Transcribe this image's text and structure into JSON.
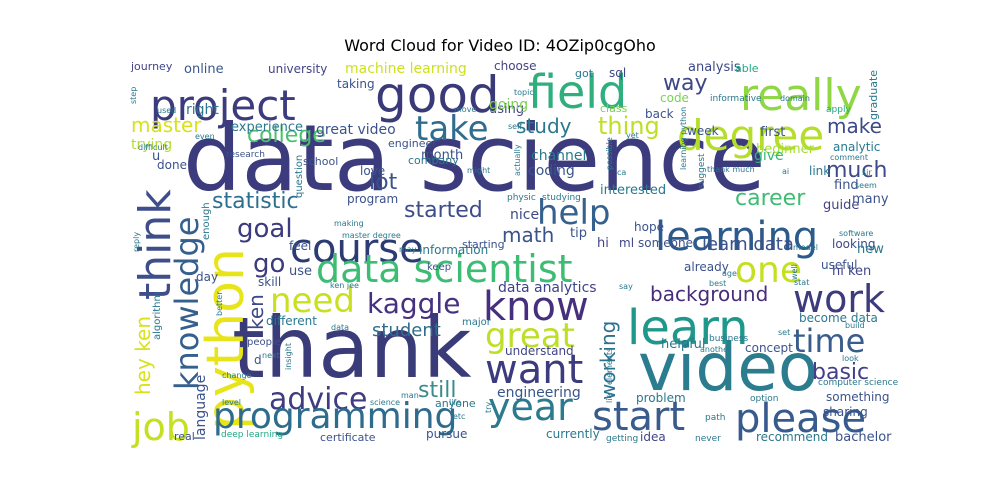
{
  "title": "Word Cloud for Video ID: 4OZip0cgOho",
  "palette": {
    "dark_purple": "#440154",
    "indigo": "#414487",
    "blue": "#2a788e",
    "teal": "#22a884",
    "green": "#7ad151",
    "yellow": "#fde725"
  },
  "words": [
    {
      "text": "data science",
      "color": "#3b3b7d"
    },
    {
      "text": "thank",
      "color": "#3a3b79"
    },
    {
      "text": "video",
      "color": "#2a7c8e"
    },
    {
      "text": "project",
      "color": "#3b3b7e"
    },
    {
      "text": "good",
      "color": "#3a3a79"
    },
    {
      "text": "field",
      "color": "#2fae7e"
    },
    {
      "text": "really",
      "color": "#8fd744"
    },
    {
      "text": "degree",
      "color": "#b5de2b"
    },
    {
      "text": "take",
      "color": "#2f6c8e"
    },
    {
      "text": "python",
      "color": "#e7e419"
    },
    {
      "text": "think",
      "color": "#3d4e8a"
    },
    {
      "text": "knowledge",
      "color": "#355f8d"
    },
    {
      "text": "course",
      "color": "#2c3c73"
    },
    {
      "text": "help",
      "color": "#34618d"
    },
    {
      "text": "learning",
      "color": "#2c5b8b"
    },
    {
      "text": "data scientist",
      "color": "#3dbc74"
    },
    {
      "text": "one",
      "color": "#c5e021"
    },
    {
      "text": "need",
      "color": "#c9e020"
    },
    {
      "text": "kaggle",
      "color": "#46317e"
    },
    {
      "text": "know",
      "color": "#46307e"
    },
    {
      "text": "learn",
      "color": "#1f988b"
    },
    {
      "text": "want",
      "color": "#3b3b7d"
    },
    {
      "text": "work",
      "color": "#3b3b7d"
    },
    {
      "text": "time",
      "color": "#3a5c8c"
    },
    {
      "text": "great",
      "color": "#bddf26"
    },
    {
      "text": "year",
      "color": "#2b7a8e"
    },
    {
      "text": "advice",
      "color": "#3f3c81"
    },
    {
      "text": "programming",
      "color": "#2e6c8e"
    },
    {
      "text": "start",
      "color": "#3a5c8c"
    },
    {
      "text": "please",
      "color": "#375b8d"
    },
    {
      "text": "job",
      "color": "#c5e021"
    },
    {
      "text": "go",
      "color": "#3b3b7d"
    },
    {
      "text": "goal",
      "color": "#3b3b7d"
    },
    {
      "text": "statistic",
      "color": "#2d6f8e"
    },
    {
      "text": "started",
      "color": "#3d4d8a"
    },
    {
      "text": "career",
      "color": "#3fbc73"
    },
    {
      "text": "master",
      "color": "#d8e219"
    },
    {
      "text": "college",
      "color": "#4ac16d"
    },
    {
      "text": "way",
      "color": "#3f4788"
    },
    {
      "text": "thing",
      "color": "#bddf26"
    },
    {
      "text": "study",
      "color": "#2a788e"
    },
    {
      "text": "much",
      "color": "#3e4989"
    },
    {
      "text": "make",
      "color": "#3e4989"
    },
    {
      "text": "lot",
      "color": "#3a538b"
    },
    {
      "text": "math",
      "color": "#3a538b"
    },
    {
      "text": "background",
      "color": "#472c7a"
    },
    {
      "text": "basic",
      "color": "#433e85"
    },
    {
      "text": "working",
      "color": "#2c718e"
    },
    {
      "text": "still",
      "color": "#3b8b8c"
    },
    {
      "text": "student",
      "color": "#2f6c8e"
    },
    {
      "text": "hey ken",
      "color": "#d8e219"
    },
    {
      "text": "language",
      "color": "#3b528b"
    },
    {
      "text": "ken",
      "color": "#3e4989"
    },
    {
      "text": "data analytics",
      "color": "#414487"
    },
    {
      "text": "engineering",
      "color": "#39568c"
    },
    {
      "text": "learn data",
      "color": "#3b528b"
    },
    {
      "text": "machine learning",
      "color": "#cde11d"
    },
    {
      "text": "experience",
      "color": "#2a788e"
    },
    {
      "text": "great video",
      "color": "#3b528b"
    },
    {
      "text": "coding",
      "color": "#39568c"
    },
    {
      "text": "channel",
      "color": "#2a788e"
    },
    {
      "text": "month",
      "color": "#3b528b"
    },
    {
      "text": "university",
      "color": "#414487"
    },
    {
      "text": "online",
      "color": "#39568c"
    },
    {
      "text": "right",
      "color": "#2a788e"
    },
    {
      "text": "trying",
      "color": "#b5de2b"
    },
    {
      "text": "journey",
      "color": "#414487"
    },
    {
      "text": "analysis",
      "color": "#3e4989"
    },
    {
      "text": "using",
      "color": "#414487"
    },
    {
      "text": "choose",
      "color": "#414487"
    },
    {
      "text": "sql",
      "color": "#414487"
    },
    {
      "text": "got",
      "color": "#2a788e"
    },
    {
      "text": "able",
      "color": "#22a884"
    },
    {
      "text": "going",
      "color": "#7ad151"
    },
    {
      "text": "code",
      "color": "#7ad151"
    },
    {
      "text": "back",
      "color": "#3b528b"
    },
    {
      "text": "first",
      "color": "#3b528b"
    },
    {
      "text": "beginner",
      "color": "#a8db34"
    },
    {
      "text": "analytic",
      "color": "#2a788e"
    },
    {
      "text": "give",
      "color": "#35b779"
    },
    {
      "text": "link",
      "color": "#2a788e"
    },
    {
      "text": "find",
      "color": "#3b528b"
    },
    {
      "text": "many",
      "color": "#3b528b"
    },
    {
      "text": "guide",
      "color": "#414487"
    },
    {
      "text": "interested",
      "color": "#2a788e"
    },
    {
      "text": "nice",
      "color": "#3e4989"
    },
    {
      "text": "tip",
      "color": "#39568c"
    },
    {
      "text": "hi",
      "color": "#414487"
    },
    {
      "text": "ml",
      "color": "#414487"
    },
    {
      "text": "someone",
      "color": "#3b528b"
    },
    {
      "text": "hope",
      "color": "#3b528b"
    },
    {
      "text": "already",
      "color": "#3b528b"
    },
    {
      "text": "looking",
      "color": "#3e4989"
    },
    {
      "text": "hi ken",
      "color": "#414487"
    },
    {
      "text": "new",
      "color": "#2a788e"
    },
    {
      "text": "useful",
      "color": "#3b528b"
    },
    {
      "text": "become data",
      "color": "#2a788e"
    },
    {
      "text": "concept",
      "color": "#3b528b"
    },
    {
      "text": "helpful",
      "color": "#2a788e"
    },
    {
      "text": "something",
      "color": "#3b528b"
    },
    {
      "text": "sharing",
      "color": "#3b528b"
    },
    {
      "text": "recommend",
      "color": "#2a788e"
    },
    {
      "text": "bachelor",
      "color": "#3b528b"
    },
    {
      "text": "problem",
      "color": "#2a788e"
    },
    {
      "text": "idea",
      "color": "#414487"
    },
    {
      "text": "currently",
      "color": "#2a788e"
    },
    {
      "text": "pursue",
      "color": "#3b528b"
    },
    {
      "text": "certificate",
      "color": "#3b528b"
    },
    {
      "text": "real",
      "color": "#3b528b"
    },
    {
      "text": "deep learning",
      "color": "#22a884"
    },
    {
      "text": "anyone",
      "color": "#2a788e"
    },
    {
      "text": "understand",
      "color": "#414487"
    },
    {
      "text": "feel",
      "color": "#3b528b"
    },
    {
      "text": "use",
      "color": "#3b528b"
    },
    {
      "text": "skill",
      "color": "#3b528b"
    },
    {
      "text": "different",
      "color": "#2a788e"
    },
    {
      "text": "people",
      "color": "#3b528b"
    },
    {
      "text": "day",
      "color": "#3b528b"
    },
    {
      "text": "information",
      "color": "#2a788e"
    },
    {
      "text": "starting",
      "color": "#3b528b"
    },
    {
      "text": "keep",
      "color": "#3b528b"
    },
    {
      "text": "program",
      "color": "#3b528b"
    },
    {
      "text": "company",
      "color": "#2a788e"
    },
    {
      "text": "done",
      "color": "#3b528b"
    },
    {
      "text": "love",
      "color": "#3b528b"
    },
    {
      "text": "engineer",
      "color": "#3b528b"
    },
    {
      "text": "taking",
      "color": "#3b528b"
    },
    {
      "text": "question",
      "color": "#2a788e"
    },
    {
      "text": "school",
      "color": "#3b528b"
    },
    {
      "text": "research",
      "color": "#3b528b"
    },
    {
      "text": "week",
      "color": "#3b528b"
    },
    {
      "text": "class",
      "color": "#7ad151"
    },
    {
      "text": "informative",
      "color": "#2a788e"
    },
    {
      "text": "domain",
      "color": "#2a788e"
    },
    {
      "text": "apply",
      "color": "#22a884"
    },
    {
      "text": "graduate",
      "color": "#2a788e"
    },
    {
      "text": "enough",
      "color": "#2a788e"
    },
    {
      "text": "algorithm",
      "color": "#2a788e"
    },
    {
      "text": "u",
      "color": "#3b528b"
    },
    {
      "text": "d",
      "color": "#3b528b"
    },
    {
      "text": "major",
      "color": "#2a788e"
    },
    {
      "text": "business",
      "color": "#2a788e"
    },
    {
      "text": "another",
      "color": "#2a788e"
    },
    {
      "text": "option",
      "color": "#2a788e"
    },
    {
      "text": "getting",
      "color": "#2a788e"
    },
    {
      "text": "never",
      "color": "#2a788e"
    },
    {
      "text": "path",
      "color": "#2a788e"
    },
    {
      "text": "computer science",
      "color": "#2a788e"
    },
    {
      "text": "build",
      "color": "#2a788e"
    },
    {
      "text": "look",
      "color": "#2a788e"
    },
    {
      "text": "model",
      "color": "#2a788e"
    },
    {
      "text": "age",
      "color": "#2a788e"
    },
    {
      "text": "best",
      "color": "#2a788e"
    },
    {
      "text": "set",
      "color": "#2a788e"
    },
    {
      "text": "stat",
      "color": "#2a788e"
    },
    {
      "text": "software",
      "color": "#2a788e"
    },
    {
      "text": "seem",
      "color": "#2a788e"
    },
    {
      "text": "comment",
      "color": "#2a788e"
    },
    {
      "text": "sir",
      "color": "#2a788e"
    },
    {
      "text": "ai",
      "color": "#2a788e"
    },
    {
      "text": "thank much",
      "color": "#2a788e"
    },
    {
      "text": "suggest",
      "color": "#2a788e"
    },
    {
      "text": "learning python",
      "color": "#2a788e"
    },
    {
      "text": "possible",
      "color": "#2a788e"
    },
    {
      "text": "yet",
      "color": "#2a788e"
    },
    {
      "text": "ca",
      "color": "#2a788e"
    },
    {
      "text": "actually",
      "color": "#2a788e"
    },
    {
      "text": "studying",
      "color": "#2a788e"
    },
    {
      "text": "physic",
      "color": "#2a788e"
    },
    {
      "text": "might",
      "color": "#2a788e"
    },
    {
      "text": "making",
      "color": "#2a788e"
    },
    {
      "text": "master degree",
      "color": "#2a788e"
    },
    {
      "text": "ken jee",
      "color": "#2a788e"
    },
    {
      "text": "man",
      "color": "#2a788e"
    },
    {
      "text": "science",
      "color": "#2a788e"
    },
    {
      "text": "life",
      "color": "#2a788e"
    },
    {
      "text": "etc",
      "color": "#2a788e"
    },
    {
      "text": "level",
      "color": "#2a788e"
    },
    {
      "text": "change",
      "color": "#2a788e"
    },
    {
      "text": "next",
      "color": "#2a788e"
    },
    {
      "text": "insight",
      "color": "#2a788e"
    },
    {
      "text": "better",
      "color": "#2a788e"
    },
    {
      "text": "reply",
      "color": "#2a788e"
    },
    {
      "text": "difficult",
      "color": "#2a788e"
    },
    {
      "text": "used",
      "color": "#2a788e"
    },
    {
      "text": "step",
      "color": "#2a788e"
    },
    {
      "text": "even",
      "color": "#2a788e"
    },
    {
      "text": "topic",
      "color": "#2a788e"
    },
    {
      "text": "self",
      "color": "#2a788e"
    },
    {
      "text": "move",
      "color": "#2a788e"
    },
    {
      "text": "say",
      "color": "#2a788e"
    },
    {
      "text": "try",
      "color": "#2a788e"
    },
    {
      "text": "may",
      "color": "#2a788e"
    },
    {
      "text": "well",
      "color": "#2a788e"
    },
    {
      "text": "lie",
      "color": "#2a788e"
    },
    {
      "text": "data",
      "color": "#2a788e"
    },
    {
      "text": "elements",
      "color": "#2a788e"
    }
  ]
}
